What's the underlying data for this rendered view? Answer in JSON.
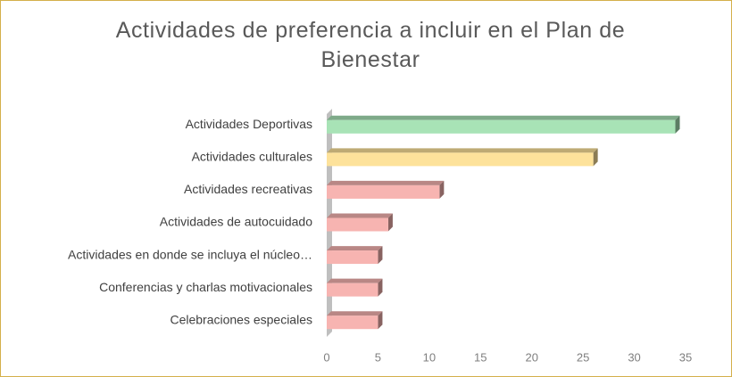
{
  "chart_data": {
    "type": "bar",
    "orientation": "horizontal",
    "title": "Actividades de preferencia a incluir en el Plan de Bienestar",
    "categories": [
      "Actividades Deportivas",
      "Actividades culturales",
      "Actividades recreativas",
      "Actividades de autocuidado",
      "Actividades en donde se incluya el núcleo…",
      "Conferencias y charlas motivacionales",
      "Celebraciones especiales"
    ],
    "values": [
      34,
      26,
      11,
      6,
      5,
      5,
      5
    ],
    "colors": [
      "#a8e3b6",
      "#fde29b",
      "#f7b4b1",
      "#f7b4b1",
      "#f7b4b1",
      "#f7b4b1",
      "#f7b4b1"
    ],
    "xlim": [
      0,
      35
    ],
    "xticks": [
      0,
      5,
      10,
      15,
      20,
      25,
      30,
      35
    ],
    "grid": false
  }
}
